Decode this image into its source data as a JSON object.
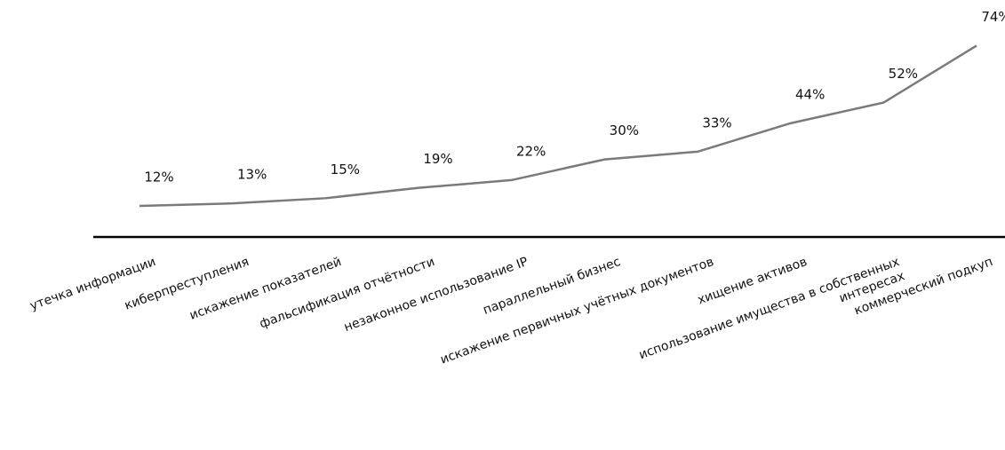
{
  "chart_data": {
    "type": "line",
    "categories": [
      "утечка информации",
      "киберпреступления",
      "искажение показателей",
      "фальсификация отчётности",
      "незаконное использование IP",
      "параллельный бизнес",
      "искажение первичных учётных документов",
      "хищение активов",
      "использование имущества в собственных интересах",
      "коммерческий подкуп"
    ],
    "values": [
      12,
      13,
      15,
      19,
      22,
      30,
      33,
      44,
      52,
      74
    ],
    "value_labels": [
      "12%",
      "13%",
      "15%",
      "19%",
      "22%",
      "30%",
      "33%",
      "44%",
      "52%",
      "74%"
    ],
    "color": "#7a7a7a",
    "ylim": [
      0,
      80
    ]
  }
}
